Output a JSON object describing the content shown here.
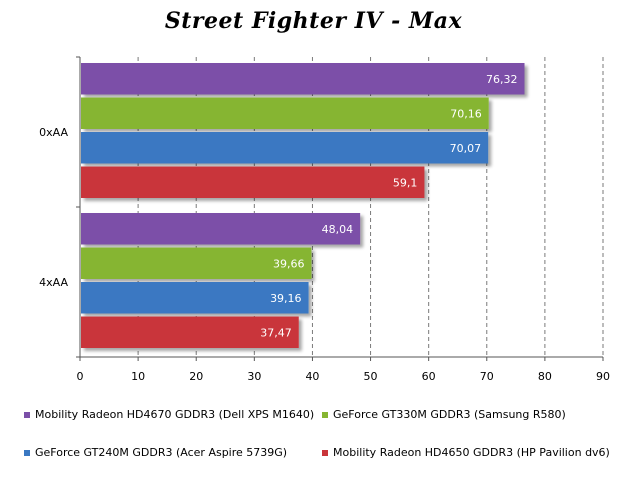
{
  "chart_data": {
    "type": "bar",
    "orientation": "horizontal",
    "title": "Street Fighter IV - Max",
    "xlabel": "",
    "ylabel": "",
    "xlim": [
      0,
      90
    ],
    "x_ticks": [
      "0",
      "10",
      "20",
      "30",
      "40",
      "50",
      "60",
      "70",
      "80",
      "90"
    ],
    "categories": [
      "0xAA",
      "4xAA"
    ],
    "grid": true,
    "legend_position": "bottom",
    "series": [
      {
        "name": "Mobility Radeon HD4670 GDDR3 (Dell XPS M1640)",
        "color": "#7b4fa8",
        "values": [
          76.32,
          48.04
        ],
        "labels": [
          "76,32",
          "48,04"
        ]
      },
      {
        "name": "GeForce GT330M GDDR3 (Samsung R580)",
        "color": "#86b532",
        "values": [
          70.16,
          39.66
        ],
        "labels": [
          "70,16",
          "39,66"
        ]
      },
      {
        "name": "GeForce GT240M GDDR3 (Acer Aspire 5739G)",
        "color": "#3a78c2",
        "values": [
          70.07,
          39.16
        ],
        "labels": [
          "70,07",
          "39,16"
        ]
      },
      {
        "name": "Mobility Radeon HD4650 GDDR3 (HP Pavilion dv6)",
        "color": "#c9353a",
        "values": [
          59.1,
          37.47
        ],
        "labels": [
          "59,1",
          "37,47"
        ]
      }
    ]
  }
}
